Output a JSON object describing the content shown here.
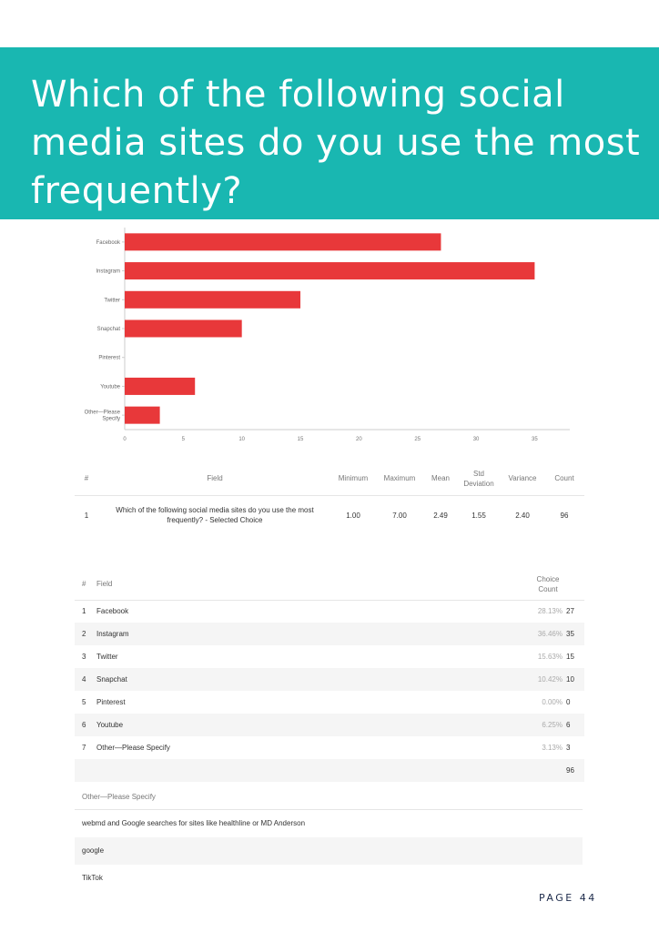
{
  "title": "Which of the following social media sites do you use the most frequently?",
  "page_label": "PAGE 44",
  "colors": {
    "banner": "#19b7b1",
    "bar": "#e8383a"
  },
  "chart_data": {
    "type": "bar",
    "orientation": "horizontal",
    "categories": [
      "Facebook",
      "Instagram",
      "Twitter",
      "Snapchat",
      "Pinterest",
      "Youtube",
      "Other—Please Specify"
    ],
    "category_lines": [
      [
        "Facebook"
      ],
      [
        "Instagram"
      ],
      [
        "Twitter"
      ],
      [
        "Snapchat"
      ],
      [
        "Pinterest"
      ],
      [
        "Youtube"
      ],
      [
        "Other—Please",
        "Specify"
      ]
    ],
    "values": [
      27,
      35,
      15,
      10,
      0,
      6,
      3
    ],
    "xlim": [
      0,
      38
    ],
    "xticks": [
      0,
      5,
      10,
      15,
      20,
      25,
      30,
      35
    ],
    "grid": false
  },
  "stats_table": {
    "headers": [
      "#",
      "Field",
      "Minimum",
      "Maximum",
      "Mean",
      "Std Deviation",
      "Variance",
      "Count"
    ],
    "row": {
      "index": "1",
      "field_line1": "Which of the following social media sites do you use the most",
      "field_line2": "frequently? - Selected Choice",
      "minimum": "1.00",
      "maximum": "7.00",
      "mean": "2.49",
      "std": "1.55",
      "variance": "2.40",
      "count": "96"
    }
  },
  "choice_table": {
    "headers": {
      "index": "#",
      "field": "Field",
      "choice_line1": "Choice",
      "choice_line2": "Count"
    },
    "rows": [
      {
        "index": "1",
        "field": "Facebook",
        "pct": "28.13%",
        "count": "27"
      },
      {
        "index": "2",
        "field": "Instagram",
        "pct": "36.46%",
        "count": "35"
      },
      {
        "index": "3",
        "field": "Twitter",
        "pct": "15.63%",
        "count": "15"
      },
      {
        "index": "4",
        "field": "Snapchat",
        "pct": "10.42%",
        "count": "10"
      },
      {
        "index": "5",
        "field": "Pinterest",
        "pct": "0.00%",
        "count": "0"
      },
      {
        "index": "6",
        "field": "Youtube",
        "pct": "6.25%",
        "count": "6"
      },
      {
        "index": "7",
        "field": "Other—Please Specify",
        "pct": "3.13%",
        "count": "3"
      }
    ],
    "total": "96"
  },
  "other_responses": {
    "header": "Other—Please Specify",
    "items": [
      "webmd and Google searches for sites like healthline or MD Anderson",
      "google",
      "TikTok"
    ]
  }
}
